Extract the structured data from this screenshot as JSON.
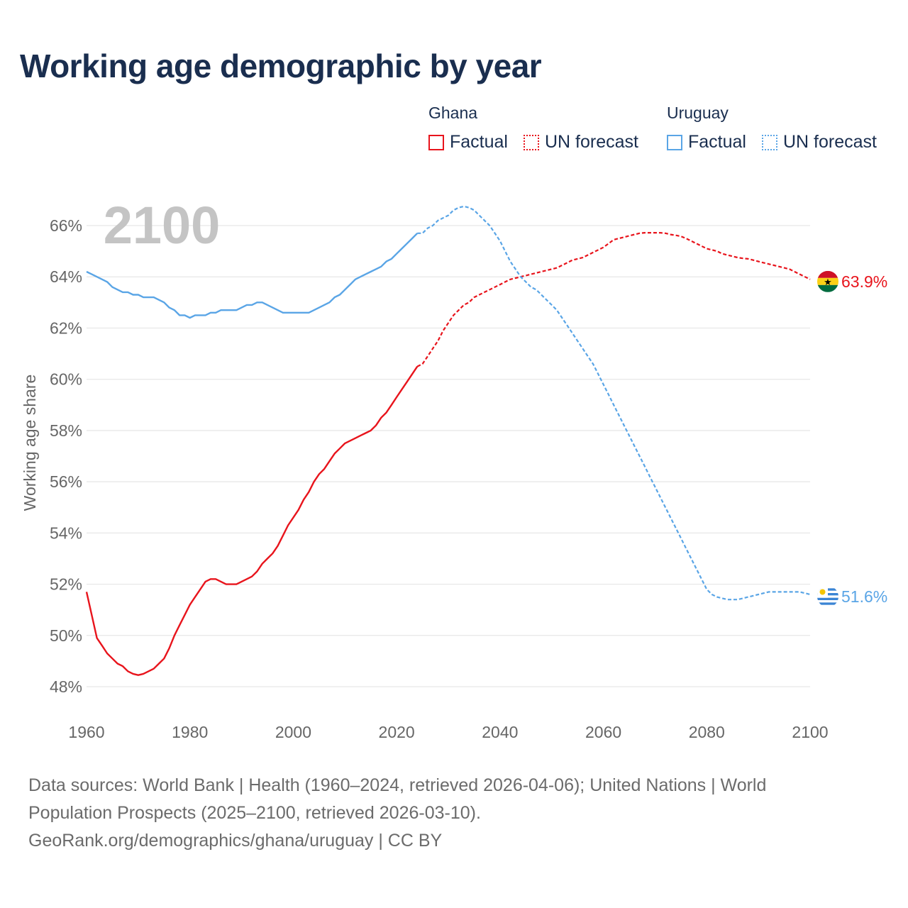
{
  "title": "Working age demographic by year",
  "legend": {
    "groups": [
      {
        "name": "Ghana",
        "factual_label": "Factual",
        "forecast_label": "UN forecast",
        "color": "#e8141c"
      },
      {
        "name": "Uruguay",
        "factual_label": "Factual",
        "forecast_label": "UN forecast",
        "color": "#5aa5e6"
      }
    ]
  },
  "year_watermark": "2100",
  "chart_data": {
    "type": "line",
    "ylabel": "Working age share",
    "xlabel": "",
    "xlim": [
      1960,
      2100
    ],
    "ylim": [
      47.5,
      67
    ],
    "x_ticks": [
      1960,
      1980,
      2000,
      2020,
      2040,
      2060,
      2080,
      2100
    ],
    "y_ticks": [
      48,
      50,
      52,
      54,
      56,
      58,
      60,
      62,
      64,
      66
    ],
    "y_tick_labels": [
      "48%",
      "50%",
      "52%",
      "54%",
      "56%",
      "58%",
      "60%",
      "62%",
      "64%",
      "66%"
    ],
    "x_tick_labels": [
      "1960",
      "1980",
      "2000",
      "2020",
      "2040",
      "2060",
      "2080",
      "2100"
    ],
    "grid": true,
    "forecast_start_year": 2024,
    "series": [
      {
        "name": "Ghana",
        "color": "#e8141c",
        "end_label": "63.9%",
        "points": [
          [
            1960,
            51.7
          ],
          [
            1961,
            50.8
          ],
          [
            1962,
            49.9
          ],
          [
            1963,
            49.6
          ],
          [
            1964,
            49.3
          ],
          [
            1965,
            49.1
          ],
          [
            1966,
            48.9
          ],
          [
            1967,
            48.8
          ],
          [
            1968,
            48.6
          ],
          [
            1969,
            48.5
          ],
          [
            1970,
            48.45
          ],
          [
            1971,
            48.5
          ],
          [
            1972,
            48.6
          ],
          [
            1973,
            48.7
          ],
          [
            1974,
            48.9
          ],
          [
            1975,
            49.1
          ],
          [
            1976,
            49.5
          ],
          [
            1977,
            50.0
          ],
          [
            1978,
            50.4
          ],
          [
            1979,
            50.8
          ],
          [
            1980,
            51.2
          ],
          [
            1981,
            51.5
          ],
          [
            1982,
            51.8
          ],
          [
            1983,
            52.1
          ],
          [
            1984,
            52.2
          ],
          [
            1985,
            52.2
          ],
          [
            1986,
            52.1
          ],
          [
            1987,
            52.0
          ],
          [
            1988,
            52.0
          ],
          [
            1989,
            52.0
          ],
          [
            1990,
            52.1
          ],
          [
            1991,
            52.2
          ],
          [
            1992,
            52.3
          ],
          [
            1993,
            52.5
          ],
          [
            1994,
            52.8
          ],
          [
            1995,
            53.0
          ],
          [
            1996,
            53.2
          ],
          [
            1997,
            53.5
          ],
          [
            1998,
            53.9
          ],
          [
            1999,
            54.3
          ],
          [
            2000,
            54.6
          ],
          [
            2001,
            54.9
          ],
          [
            2002,
            55.3
          ],
          [
            2003,
            55.6
          ],
          [
            2004,
            56.0
          ],
          [
            2005,
            56.3
          ],
          [
            2006,
            56.5
          ],
          [
            2007,
            56.8
          ],
          [
            2008,
            57.1
          ],
          [
            2009,
            57.3
          ],
          [
            2010,
            57.5
          ],
          [
            2011,
            57.6
          ],
          [
            2012,
            57.7
          ],
          [
            2013,
            57.8
          ],
          [
            2014,
            57.9
          ],
          [
            2015,
            58.0
          ],
          [
            2016,
            58.2
          ],
          [
            2017,
            58.5
          ],
          [
            2018,
            58.7
          ],
          [
            2019,
            59.0
          ],
          [
            2020,
            59.3
          ],
          [
            2021,
            59.6
          ],
          [
            2022,
            59.9
          ],
          [
            2023,
            60.2
          ],
          [
            2024,
            60.5
          ],
          [
            2025,
            60.6
          ],
          [
            2026,
            60.9
          ],
          [
            2027,
            61.2
          ],
          [
            2028,
            61.5
          ],
          [
            2029,
            61.9
          ],
          [
            2030,
            62.2
          ],
          [
            2031,
            62.5
          ],
          [
            2032,
            62.7
          ],
          [
            2033,
            62.9
          ],
          [
            2034,
            63.0
          ],
          [
            2035,
            63.2
          ],
          [
            2036,
            63.3
          ],
          [
            2037,
            63.4
          ],
          [
            2038,
            63.5
          ],
          [
            2039,
            63.6
          ],
          [
            2040,
            63.7
          ],
          [
            2041,
            63.8
          ],
          [
            2042,
            63.9
          ],
          [
            2043,
            63.95
          ],
          [
            2044,
            64.0
          ],
          [
            2045,
            64.05
          ],
          [
            2046,
            64.1
          ],
          [
            2047,
            64.15
          ],
          [
            2048,
            64.2
          ],
          [
            2049,
            64.25
          ],
          [
            2050,
            64.3
          ],
          [
            2051,
            64.35
          ],
          [
            2052,
            64.45
          ],
          [
            2053,
            64.55
          ],
          [
            2054,
            64.65
          ],
          [
            2055,
            64.7
          ],
          [
            2056,
            64.75
          ],
          [
            2057,
            64.85
          ],
          [
            2058,
            64.95
          ],
          [
            2059,
            65.05
          ],
          [
            2060,
            65.15
          ],
          [
            2061,
            65.3
          ],
          [
            2062,
            65.45
          ],
          [
            2063,
            65.5
          ],
          [
            2064,
            65.55
          ],
          [
            2065,
            65.6
          ],
          [
            2066,
            65.65
          ],
          [
            2067,
            65.7
          ],
          [
            2068,
            65.72
          ],
          [
            2069,
            65.72
          ],
          [
            2070,
            65.72
          ],
          [
            2071,
            65.72
          ],
          [
            2072,
            65.7
          ],
          [
            2073,
            65.65
          ],
          [
            2074,
            65.62
          ],
          [
            2075,
            65.58
          ],
          [
            2076,
            65.5
          ],
          [
            2077,
            65.4
          ],
          [
            2078,
            65.3
          ],
          [
            2079,
            65.2
          ],
          [
            2080,
            65.1
          ],
          [
            2081,
            65.05
          ],
          [
            2082,
            65.0
          ],
          [
            2083,
            64.9
          ],
          [
            2084,
            64.85
          ],
          [
            2085,
            64.8
          ],
          [
            2086,
            64.75
          ],
          [
            2087,
            64.72
          ],
          [
            2088,
            64.7
          ],
          [
            2089,
            64.65
          ],
          [
            2090,
            64.6
          ],
          [
            2091,
            64.55
          ],
          [
            2092,
            64.5
          ],
          [
            2093,
            64.45
          ],
          [
            2094,
            64.4
          ],
          [
            2095,
            64.35
          ],
          [
            2096,
            64.3
          ],
          [
            2097,
            64.2
          ],
          [
            2098,
            64.1
          ],
          [
            2099,
            64.0
          ],
          [
            2100,
            63.9
          ]
        ]
      },
      {
        "name": "Uruguay",
        "color": "#5aa5e6",
        "end_label": "51.6%",
        "points": [
          [
            1960,
            64.2
          ],
          [
            1961,
            64.1
          ],
          [
            1962,
            64.0
          ],
          [
            1963,
            63.9
          ],
          [
            1964,
            63.8
          ],
          [
            1965,
            63.6
          ],
          [
            1966,
            63.5
          ],
          [
            1967,
            63.4
          ],
          [
            1968,
            63.4
          ],
          [
            1969,
            63.3
          ],
          [
            1970,
            63.3
          ],
          [
            1971,
            63.2
          ],
          [
            1972,
            63.2
          ],
          [
            1973,
            63.2
          ],
          [
            1974,
            63.1
          ],
          [
            1975,
            63.0
          ],
          [
            1976,
            62.8
          ],
          [
            1977,
            62.7
          ],
          [
            1978,
            62.5
          ],
          [
            1979,
            62.5
          ],
          [
            1980,
            62.4
          ],
          [
            1981,
            62.5
          ],
          [
            1982,
            62.5
          ],
          [
            1983,
            62.5
          ],
          [
            1984,
            62.6
          ],
          [
            1985,
            62.6
          ],
          [
            1986,
            62.7
          ],
          [
            1987,
            62.7
          ],
          [
            1988,
            62.7
          ],
          [
            1989,
            62.7
          ],
          [
            1990,
            62.8
          ],
          [
            1991,
            62.9
          ],
          [
            1992,
            62.9
          ],
          [
            1993,
            63.0
          ],
          [
            1994,
            63.0
          ],
          [
            1995,
            62.9
          ],
          [
            1996,
            62.8
          ],
          [
            1997,
            62.7
          ],
          [
            1998,
            62.6
          ],
          [
            1999,
            62.6
          ],
          [
            2000,
            62.6
          ],
          [
            2001,
            62.6
          ],
          [
            2002,
            62.6
          ],
          [
            2003,
            62.6
          ],
          [
            2004,
            62.7
          ],
          [
            2005,
            62.8
          ],
          [
            2006,
            62.9
          ],
          [
            2007,
            63.0
          ],
          [
            2008,
            63.2
          ],
          [
            2009,
            63.3
          ],
          [
            2010,
            63.5
          ],
          [
            2011,
            63.7
          ],
          [
            2012,
            63.9
          ],
          [
            2013,
            64.0
          ],
          [
            2014,
            64.1
          ],
          [
            2015,
            64.2
          ],
          [
            2016,
            64.3
          ],
          [
            2017,
            64.4
          ],
          [
            2018,
            64.6
          ],
          [
            2019,
            64.7
          ],
          [
            2020,
            64.9
          ],
          [
            2021,
            65.1
          ],
          [
            2022,
            65.3
          ],
          [
            2023,
            65.5
          ],
          [
            2024,
            65.7
          ],
          [
            2025,
            65.7
          ],
          [
            2026,
            65.9
          ],
          [
            2027,
            66.0
          ],
          [
            2028,
            66.2
          ],
          [
            2029,
            66.3
          ],
          [
            2030,
            66.4
          ],
          [
            2031,
            66.6
          ],
          [
            2032,
            66.7
          ],
          [
            2033,
            66.75
          ],
          [
            2034,
            66.7
          ],
          [
            2035,
            66.6
          ],
          [
            2036,
            66.4
          ],
          [
            2037,
            66.2
          ],
          [
            2038,
            66.0
          ],
          [
            2039,
            65.7
          ],
          [
            2040,
            65.4
          ],
          [
            2041,
            65.0
          ],
          [
            2042,
            64.6
          ],
          [
            2043,
            64.3
          ],
          [
            2044,
            64.0
          ],
          [
            2045,
            63.8
          ],
          [
            2046,
            63.6
          ],
          [
            2047,
            63.5
          ],
          [
            2048,
            63.3
          ],
          [
            2049,
            63.1
          ],
          [
            2050,
            62.9
          ],
          [
            2051,
            62.7
          ],
          [
            2052,
            62.4
          ],
          [
            2053,
            62.1
          ],
          [
            2054,
            61.8
          ],
          [
            2055,
            61.5
          ],
          [
            2056,
            61.2
          ],
          [
            2057,
            60.9
          ],
          [
            2058,
            60.6
          ],
          [
            2059,
            60.2
          ],
          [
            2060,
            59.8
          ],
          [
            2061,
            59.4
          ],
          [
            2062,
            59.0
          ],
          [
            2063,
            58.6
          ],
          [
            2064,
            58.2
          ],
          [
            2065,
            57.8
          ],
          [
            2066,
            57.4
          ],
          [
            2067,
            57.0
          ],
          [
            2068,
            56.6
          ],
          [
            2069,
            56.2
          ],
          [
            2070,
            55.8
          ],
          [
            2071,
            55.4
          ],
          [
            2072,
            55.0
          ],
          [
            2073,
            54.6
          ],
          [
            2074,
            54.2
          ],
          [
            2075,
            53.8
          ],
          [
            2076,
            53.4
          ],
          [
            2077,
            53.0
          ],
          [
            2078,
            52.6
          ],
          [
            2079,
            52.2
          ],
          [
            2080,
            51.8
          ],
          [
            2081,
            51.6
          ],
          [
            2082,
            51.5
          ],
          [
            2083,
            51.45
          ],
          [
            2084,
            51.4
          ],
          [
            2085,
            51.4
          ],
          [
            2086,
            51.4
          ],
          [
            2087,
            51.45
          ],
          [
            2088,
            51.5
          ],
          [
            2089,
            51.55
          ],
          [
            2090,
            51.6
          ],
          [
            2091,
            51.65
          ],
          [
            2092,
            51.7
          ],
          [
            2093,
            51.7
          ],
          [
            2094,
            51.7
          ],
          [
            2095,
            51.7
          ],
          [
            2096,
            51.7
          ],
          [
            2097,
            51.7
          ],
          [
            2098,
            51.7
          ],
          [
            2099,
            51.65
          ],
          [
            2100,
            51.6
          ]
        ]
      }
    ]
  },
  "footer": {
    "line1": "Data sources: World Bank | Health (1960–2024, retrieved 2026-04-06); United Nations | World",
    "line2": "Population Prospects (2025–2100, retrieved 2026-03-10).",
    "line3": "GeoRank.org/demographics/ghana/uruguay | CC BY"
  }
}
